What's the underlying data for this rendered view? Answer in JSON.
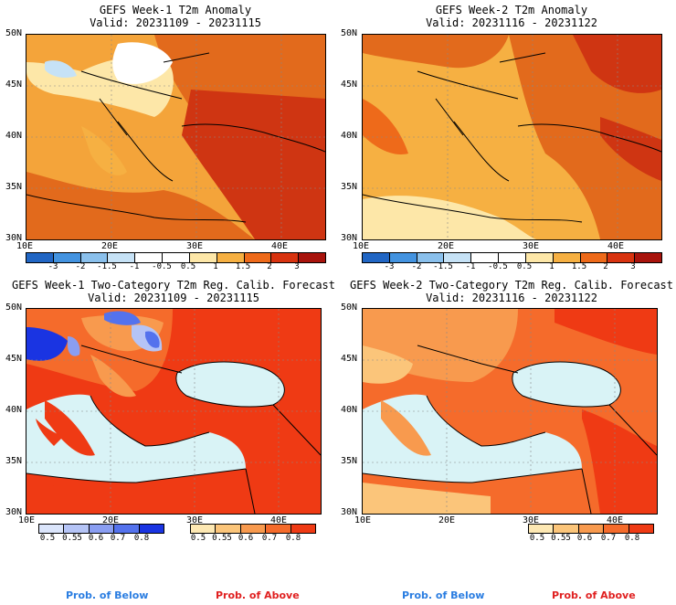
{
  "panels": [
    {
      "title": "GEFS Week-1 T2m Anomaly",
      "valid": "Valid: 20231109 - 20231115"
    },
    {
      "title": "GEFS Week-2 T2m Anomaly",
      "valid": "Valid: 20231116 - 20231122"
    },
    {
      "title": "GEFS Week-1 Two-Category T2m Reg. Calib. Forecast",
      "valid": "Valid: 20231109 - 20231115"
    },
    {
      "title": "GEFS Week-2 Two-Category T2m Reg. Calib. Forecast",
      "valid": "Valid: 20231116 - 20231122"
    }
  ],
  "lat_labels": [
    "50N",
    "45N",
    "40N",
    "35N",
    "30N"
  ],
  "lon_labels": [
    "10E",
    "20E",
    "30E",
    "40E"
  ],
  "anomaly_colorbar": {
    "labels": [
      "-3",
      "-2",
      "-1.5",
      "-1",
      "-0.5",
      "0.5",
      "1",
      "1.5",
      "2",
      "3"
    ],
    "colors": [
      "#2166c4",
      "#4393e0",
      "#8ac0ec",
      "#c6e2f6",
      "#ffffff",
      "#ffffff",
      "#fde7a8",
      "#f6b042",
      "#ee6a1a",
      "#d8330f",
      "#a8130c"
    ]
  },
  "below_colorbar": {
    "labels": [
      "0.5",
      "0.55",
      "0.6",
      "0.7",
      "0.8"
    ],
    "colors": [
      "#dbe5fb",
      "#b5c4f6",
      "#8a9ef2",
      "#5472ed",
      "#1a34e2"
    ]
  },
  "above_colorbar": {
    "labels": [
      "0.5",
      "0.55",
      "0.6",
      "0.7",
      "0.8"
    ],
    "colors": [
      "#fde8b3",
      "#fbc57a",
      "#f89a4e",
      "#f56b2b",
      "#ef3a14"
    ]
  },
  "prob_below_label": "Prob. of Below",
  "prob_above_label": "Prob. of Above",
  "colors": {
    "sea": "#d9f3f6",
    "prob_below_text": "#2a7de1",
    "prob_above_text": "#e02020"
  }
}
